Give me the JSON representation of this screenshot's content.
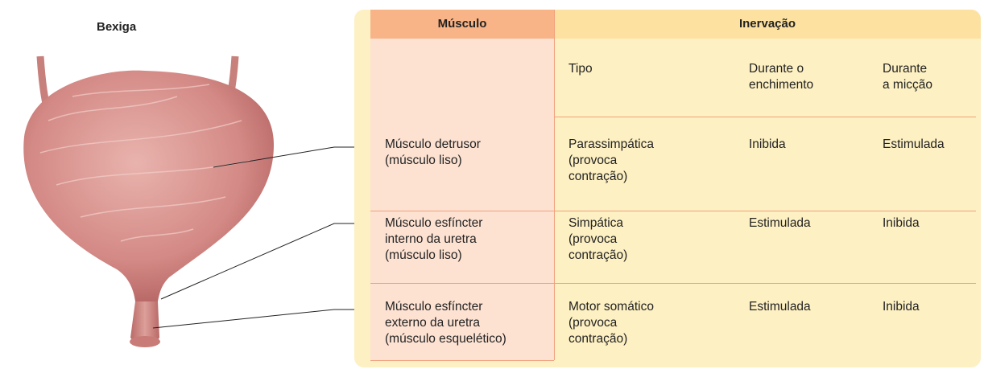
{
  "figure": {
    "title": "Bexiga"
  },
  "table": {
    "headers": [
      "Músculo",
      "Inervação"
    ],
    "subheaders": [
      "Tipo",
      "Durante o\nenchimento",
      "Durante\na micção"
    ],
    "rows": [
      [
        "Músculo detrusor\n(músculo liso)",
        "Parassimpática\n(provoca\ncontração)",
        "Inibida",
        "Estimulada"
      ],
      [
        "Músculo esfíncter\ninterno da uretra\n(músculo liso)",
        "Simpática\n(provoca\ncontração)",
        "Estimulada",
        "Inibida"
      ],
      [
        "Músculo esfíncter\nexterno da uretra\n(músculo esquelético)",
        "Motor somático\n(provoca\ncontração)",
        "Estimulada",
        "Inibida"
      ]
    ]
  }
}
